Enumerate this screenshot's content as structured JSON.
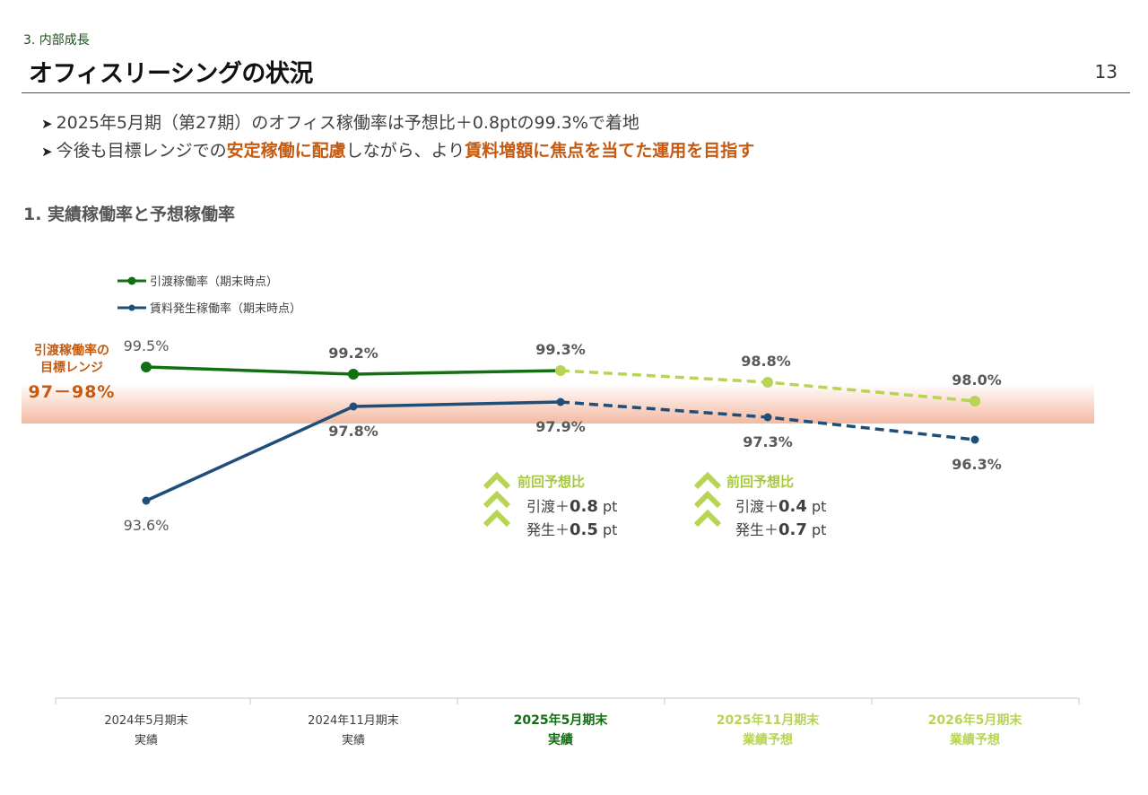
{
  "header": {
    "section": "3. 内部成長",
    "title": "オフィスリーシングの状況",
    "page_number": "13"
  },
  "bullets": [
    {
      "parts": [
        {
          "text": "2025年5月期（第27期）のオフィス稼働率は予想比＋0.8ptの99.3%で着地",
          "hl": false
        }
      ]
    },
    {
      "parts": [
        {
          "text": "今後も目標レンジでの",
          "hl": false
        },
        {
          "text": "安定稼働に配慮",
          "hl": true
        },
        {
          "text": "しながら、より",
          "hl": false
        },
        {
          "text": "賃料増額に焦点を当てた運用を目指す",
          "hl": true
        }
      ]
    }
  ],
  "subheading": "1.  実績稼働率と予想稼働率",
  "target_range": {
    "label_line1": "引渡稼働率の",
    "label_line2": "目標レンジ",
    "value": "97－98%",
    "low": 97,
    "high": 98
  },
  "colors": {
    "green": "#117011",
    "lightgreen": "#b8d455",
    "navy": "#1f4e79",
    "accent": "#c55a11",
    "band": "#f6c9b8"
  },
  "comparisons": [
    {
      "title": "前回予想比",
      "line1_label": "引渡＋",
      "line1_value": "0.8",
      "line1_unit": " pt",
      "line2_label": "発生＋",
      "line2_value": "0.5",
      "line2_unit": " pt"
    },
    {
      "title": "前回予想比",
      "line1_label": "引渡＋",
      "line1_value": "0.4",
      "line1_unit": " pt",
      "line2_label": "発生＋",
      "line2_value": "0.7",
      "line2_unit": " pt"
    }
  ],
  "chart_data": {
    "type": "line",
    "categories": [
      {
        "line1": "2024年5月期末",
        "line2": "実績",
        "style": "normal"
      },
      {
        "line1": "2024年11月期末",
        "line2": "実績",
        "style": "normal"
      },
      {
        "line1": "2025年5月期末",
        "line2": "実績",
        "style": "current"
      },
      {
        "line1": "2025年11月期末",
        "line2": "業績予想",
        "style": "forecast"
      },
      {
        "line1": "2026年5月期末",
        "line2": "業績予想",
        "style": "forecast"
      }
    ],
    "series": [
      {
        "name": "引渡稼働率（期末時点）",
        "values": [
          99.5,
          99.2,
          99.3,
          98.8,
          98.0
        ],
        "labels": [
          "99.5%",
          "99.2%",
          "99.3%",
          "98.8%",
          "98.0%"
        ],
        "actual_count": 3
      },
      {
        "name": "賃料発生稼働率（期末時点）",
        "values": [
          93.6,
          97.8,
          97.9,
          97.3,
          96.3
        ],
        "labels": [
          "93.6%",
          "97.8%",
          "97.9%",
          "97.3%",
          "96.3%"
        ],
        "actual_count": 3
      }
    ]
  }
}
